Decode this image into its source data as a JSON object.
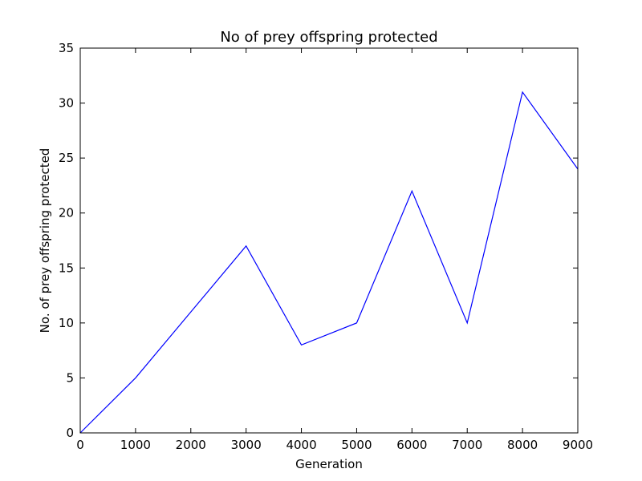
{
  "chart_data": {
    "type": "line",
    "title": "No of prey offspring protected",
    "xlabel": "Generation",
    "ylabel": "No. of prey offspring protected",
    "xlim": [
      0,
      9000
    ],
    "ylim": [
      0,
      35
    ],
    "xticks": [
      0,
      1000,
      2000,
      3000,
      4000,
      5000,
      6000,
      7000,
      8000,
      9000
    ],
    "yticks": [
      0,
      5,
      10,
      15,
      20,
      25,
      30,
      35
    ],
    "grid": false,
    "legend": "none",
    "series": [
      {
        "color": "#0000ff",
        "x": [
          0,
          1000,
          2000,
          3000,
          4000,
          5000,
          6000,
          7000,
          8000,
          9000
        ],
        "y": [
          0,
          5,
          11,
          17,
          8,
          10,
          22,
          10,
          31,
          24
        ]
      }
    ]
  }
}
